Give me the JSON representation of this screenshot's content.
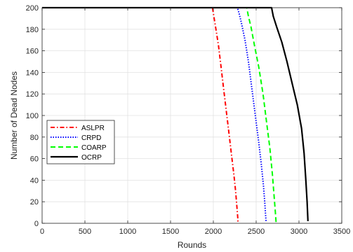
{
  "chart_data": {
    "type": "line",
    "title": "",
    "xlabel": "Rounds",
    "ylabel": "Number of Dead Nodes",
    "xlim": [
      0,
      3500
    ],
    "ylim": [
      0,
      200
    ],
    "xticks": [
      0,
      500,
      1000,
      1500,
      2000,
      2500,
      3000,
      3500
    ],
    "yticks": [
      0,
      20,
      40,
      60,
      80,
      100,
      120,
      140,
      160,
      180,
      200
    ],
    "grid": true,
    "legend_position": "center-left",
    "series": [
      {
        "name": "ASLPR",
        "color": "#ff0000",
        "line_style": "dash-dot",
        "x": [
          0,
          1990,
          2010,
          2030,
          2060,
          2090,
          2120,
          2150,
          2180,
          2210,
          2240,
          2260,
          2275,
          2285,
          2288
        ],
        "y": [
          200,
          200,
          190,
          180,
          165,
          145,
          125,
          105,
          85,
          65,
          45,
          30,
          15,
          5,
          1
        ]
      },
      {
        "name": "CRPD",
        "color": "#0000ff",
        "line_style": "dotted",
        "x": [
          0,
          2280,
          2300,
          2330,
          2370,
          2410,
          2450,
          2490,
          2530,
          2560,
          2585,
          2600,
          2610,
          2616
        ],
        "y": [
          200,
          200,
          195,
          185,
          170,
          150,
          125,
          100,
          75,
          55,
          35,
          20,
          8,
          1
        ]
      },
      {
        "name": "COARP",
        "color": "#00ff00",
        "line_style": "dashed",
        "x": [
          0,
          2390,
          2410,
          2440,
          2480,
          2530,
          2580,
          2620,
          2660,
          2690,
          2710,
          2725,
          2733
        ],
        "y": [
          200,
          200,
          192,
          182,
          165,
          145,
          120,
          95,
          70,
          45,
          25,
          10,
          1
        ]
      },
      {
        "name": "OCRP",
        "color": "#000000",
        "line_style": "solid",
        "x": [
          0,
          2680,
          2700,
          2740,
          2800,
          2860,
          2920,
          2980,
          3030,
          3060,
          3080,
          3095,
          3105
        ],
        "y": [
          200,
          200,
          192,
          182,
          168,
          150,
          130,
          110,
          88,
          65,
          40,
          20,
          2
        ]
      }
    ]
  }
}
